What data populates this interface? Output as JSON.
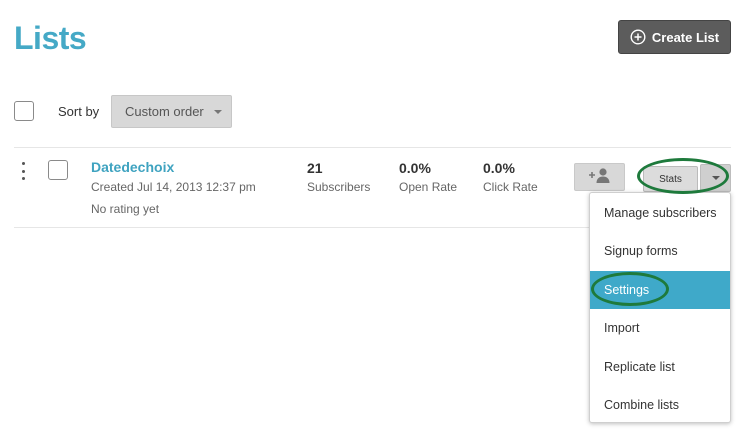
{
  "header": {
    "title": "Lists",
    "create_button": "Create List"
  },
  "toolbar": {
    "sort_label": "Sort by",
    "sort_value": "Custom order"
  },
  "list": {
    "name": "Datedechoix",
    "created": "Created Jul 14, 2013 12:37 pm",
    "rating": "No rating yet",
    "subscribers": {
      "value": "21",
      "label": "Subscribers"
    },
    "open_rate": {
      "value": "0.0%",
      "label": "Open Rate"
    },
    "click_rate": {
      "value": "0.0%",
      "label": "Click Rate"
    },
    "stats_button": "Stats"
  },
  "menu": {
    "items": [
      "Manage subscribers",
      "Signup forms",
      "Settings",
      "Import",
      "Replicate list",
      "Combine lists"
    ],
    "active": "Settings"
  },
  "colors": {
    "accent": "#45a9c6",
    "active_item": "#3fa9c9",
    "highlight_ring": "#1e7a3c",
    "primary_button": "#5c5c5c"
  },
  "icons": {
    "create": "plus-circle-icon",
    "add_subscriber": "add-person-icon",
    "kebab": "kebab-menu-icon",
    "caret": "caret-down-icon"
  }
}
